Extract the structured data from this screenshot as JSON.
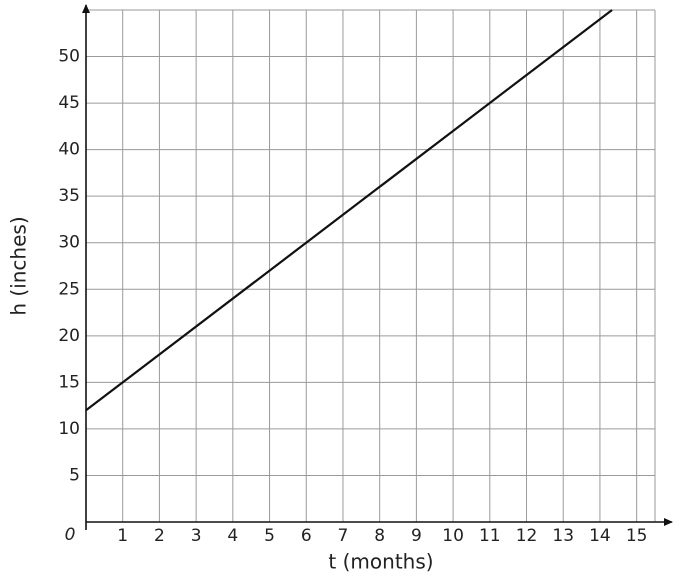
{
  "chart_data": {
    "type": "line",
    "x_label": "t (months)",
    "y_label": "h (inches)",
    "origin_label": "0",
    "x": [
      0,
      14.33
    ],
    "series": [
      {
        "color": "#111111",
        "values": [
          12,
          55
        ]
      }
    ],
    "xlim": [
      0,
      15.5
    ],
    "ylim": [
      0,
      55
    ],
    "xticks": [
      1,
      2,
      3,
      4,
      5,
      6,
      7,
      8,
      9,
      10,
      11,
      12,
      13,
      14,
      15
    ],
    "yticks": [
      5,
      10,
      15,
      20,
      25,
      30,
      35,
      40,
      45,
      50
    ],
    "grid": true
  }
}
